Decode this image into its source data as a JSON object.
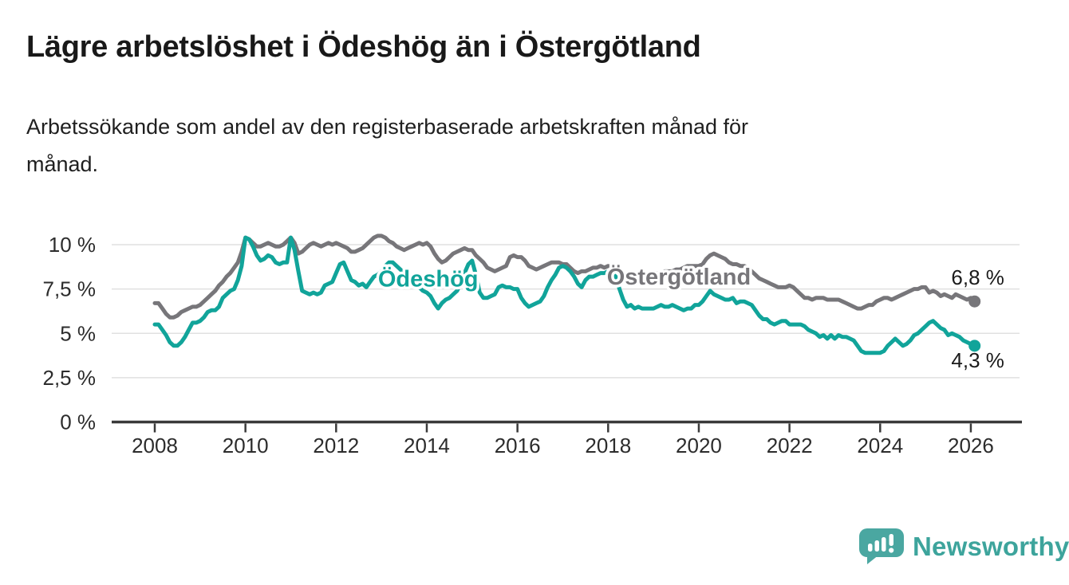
{
  "title": "Lägre arbetslöshet i Ödeshög än i Östergötland",
  "subtitle_lines": [
    "Arbetssökande som andel av den registerbaserade arbetskraften månad för",
    "månad."
  ],
  "branding": {
    "wordmark": "Newsworthy",
    "icon": "speech-bubble-bar-chart-icon",
    "icon_color": "#4aa7a1",
    "wordmark_color": "#3da49c"
  },
  "chart_data": {
    "type": "line",
    "title": "",
    "xlabel": "",
    "ylabel": "",
    "x_unit": "month",
    "x_start": "2008-01",
    "x_end": "2026-02",
    "ylim": [
      0,
      11
    ],
    "grid": true,
    "legend": "inline-labels",
    "y_ticks": [
      {
        "value": 10,
        "label": "10 %"
      },
      {
        "value": 7.5,
        "label": "7,5 %"
      },
      {
        "value": 5,
        "label": "5 %"
      },
      {
        "value": 2.5,
        "label": "2,5 %"
      },
      {
        "value": 0,
        "label": "0 %"
      }
    ],
    "x_ticks": [
      {
        "year": 2008,
        "label": "2008"
      },
      {
        "year": 2010,
        "label": "2010"
      },
      {
        "year": 2012,
        "label": "2012"
      },
      {
        "year": 2014,
        "label": "2014"
      },
      {
        "year": 2016,
        "label": "2016"
      },
      {
        "year": 2018,
        "label": "2018"
      },
      {
        "year": 2020,
        "label": "2020"
      },
      {
        "year": 2022,
        "label": "2022"
      },
      {
        "year": 2024,
        "label": "2024"
      },
      {
        "year": 2026,
        "label": "2026"
      }
    ],
    "series": [
      {
        "name": "Östergötland",
        "slug": "ostergotland",
        "color": "#77767a",
        "end_value_label": "6,8 %",
        "end_label_offset": [
          4,
          -21
        ],
        "label_pos": {
          "year": 2019.56,
          "value": 8.2
        },
        "values": [
          6.7,
          6.7,
          6.4,
          6.1,
          5.9,
          5.9,
          6.0,
          6.2,
          6.3,
          6.4,
          6.5,
          6.5,
          6.6,
          6.8,
          7.0,
          7.2,
          7.4,
          7.7,
          7.9,
          8.2,
          8.4,
          8.7,
          9.0,
          9.6,
          10.4,
          10.3,
          10.1,
          9.9,
          9.9,
          10.0,
          10.1,
          10.0,
          9.9,
          9.9,
          10.0,
          10.2,
          10.4,
          10.1,
          9.5,
          9.6,
          9.8,
          10.0,
          10.1,
          10.0,
          9.9,
          10.0,
          10.1,
          10.0,
          10.1,
          10.0,
          9.9,
          9.8,
          9.6,
          9.6,
          9.7,
          9.8,
          10.0,
          10.2,
          10.4,
          10.5,
          10.5,
          10.4,
          10.2,
          10.1,
          9.9,
          9.8,
          9.7,
          9.8,
          9.9,
          10.0,
          10.1,
          10.0,
          10.1,
          9.9,
          9.5,
          9.2,
          9.0,
          9.1,
          9.3,
          9.5,
          9.6,
          9.7,
          9.8,
          9.7,
          9.7,
          9.4,
          9.2,
          9.0,
          8.7,
          8.6,
          8.5,
          8.6,
          8.7,
          8.8,
          9.3,
          9.4,
          9.3,
          9.3,
          9.1,
          8.8,
          8.7,
          8.6,
          8.7,
          8.8,
          8.9,
          9.0,
          9.0,
          9.0,
          8.9,
          8.9,
          8.7,
          8.5,
          8.4,
          8.5,
          8.5,
          8.6,
          8.7,
          8.7,
          8.8,
          8.7,
          8.8,
          8.7,
          8.6,
          8.4,
          8.3,
          8.2,
          8.2,
          8.1,
          8.2,
          8.3,
          8.4,
          8.4,
          8.4,
          8.4,
          8.4,
          8.5,
          8.5,
          8.5,
          8.6,
          8.6,
          8.7,
          8.8,
          8.8,
          8.8,
          8.8,
          8.9,
          9.2,
          9.4,
          9.5,
          9.4,
          9.3,
          9.2,
          9.0,
          8.9,
          8.9,
          8.8,
          8.8,
          8.7,
          8.5,
          8.3,
          8.1,
          8.0,
          7.9,
          7.8,
          7.7,
          7.6,
          7.6,
          7.6,
          7.7,
          7.6,
          7.4,
          7.2,
          7.0,
          7.0,
          6.9,
          7.0,
          7.0,
          7.0,
          6.9,
          6.9,
          6.9,
          6.9,
          6.8,
          6.7,
          6.6,
          6.5,
          6.4,
          6.4,
          6.5,
          6.6,
          6.6,
          6.8,
          6.9,
          7.0,
          7.0,
          6.9,
          7.0,
          7.1,
          7.2,
          7.3,
          7.4,
          7.5,
          7.5,
          7.6,
          7.6,
          7.3,
          7.4,
          7.3,
          7.1,
          7.2,
          7.1,
          7.0,
          7.2,
          7.1,
          7.0,
          6.9,
          7.0,
          6.8
        ]
      },
      {
        "name": "Ödeshög",
        "slug": "odeshog",
        "color": "#11a49a",
        "end_value_label": "4,3 %",
        "end_label_offset": [
          4,
          27
        ],
        "label_pos": {
          "year": 2014.03,
          "value": 8.1
        },
        "values": [
          5.5,
          5.5,
          5.2,
          4.9,
          4.5,
          4.3,
          4.3,
          4.5,
          4.8,
          5.2,
          5.6,
          5.6,
          5.7,
          5.9,
          6.2,
          6.3,
          6.3,
          6.5,
          7.0,
          7.2,
          7.4,
          7.5,
          8.0,
          8.8,
          10.4,
          10.3,
          9.9,
          9.4,
          9.1,
          9.2,
          9.4,
          9.3,
          9.0,
          8.9,
          9.0,
          9.0,
          10.4,
          9.7,
          8.5,
          7.4,
          7.3,
          7.2,
          7.3,
          7.2,
          7.3,
          7.7,
          7.8,
          7.9,
          8.4,
          8.9,
          9.0,
          8.5,
          8.0,
          7.9,
          7.7,
          7.8,
          7.6,
          7.9,
          8.2,
          8.3,
          8.5,
          8.8,
          9.0,
          9.0,
          8.8,
          8.6,
          8.4,
          8.2,
          8.0,
          7.8,
          7.6,
          7.4,
          7.3,
          7.1,
          6.7,
          6.4,
          6.7,
          6.9,
          7.0,
          7.2,
          7.4,
          7.8,
          8.4,
          8.9,
          9.1,
          8.3,
          7.3,
          7.0,
          7.0,
          7.1,
          7.2,
          7.6,
          7.7,
          7.6,
          7.6,
          7.5,
          7.5,
          7.0,
          6.7,
          6.5,
          6.6,
          6.7,
          6.8,
          7.1,
          7.6,
          8.0,
          8.3,
          8.7,
          8.8,
          8.7,
          8.5,
          8.2,
          7.8,
          7.6,
          8.0,
          8.2,
          8.2,
          8.3,
          8.4,
          8.4,
          8.5,
          8.4,
          8.2,
          7.5,
          6.9,
          6.5,
          6.6,
          6.4,
          6.5,
          6.4,
          6.4,
          6.4,
          6.4,
          6.5,
          6.6,
          6.5,
          6.5,
          6.6,
          6.5,
          6.4,
          6.3,
          6.4,
          6.4,
          6.6,
          6.6,
          6.8,
          7.1,
          7.4,
          7.2,
          7.1,
          7.0,
          6.9,
          6.9,
          7.0,
          6.7,
          6.8,
          6.8,
          6.7,
          6.6,
          6.3,
          6.0,
          5.8,
          5.8,
          5.6,
          5.5,
          5.6,
          5.7,
          5.7,
          5.5,
          5.5,
          5.5,
          5.5,
          5.4,
          5.2,
          5.1,
          5.0,
          4.8,
          4.9,
          4.7,
          4.9,
          4.7,
          4.9,
          4.8,
          4.8,
          4.7,
          4.6,
          4.3,
          4.0,
          3.9,
          3.9,
          3.9,
          3.9,
          3.9,
          4.0,
          4.3,
          4.5,
          4.7,
          4.5,
          4.3,
          4.4,
          4.6,
          4.9,
          5.0,
          5.2,
          5.4,
          5.6,
          5.7,
          5.5,
          5.3,
          5.2,
          4.9,
          5.0,
          4.9,
          4.8,
          4.6,
          4.5,
          4.4,
          4.3
        ]
      }
    ]
  }
}
